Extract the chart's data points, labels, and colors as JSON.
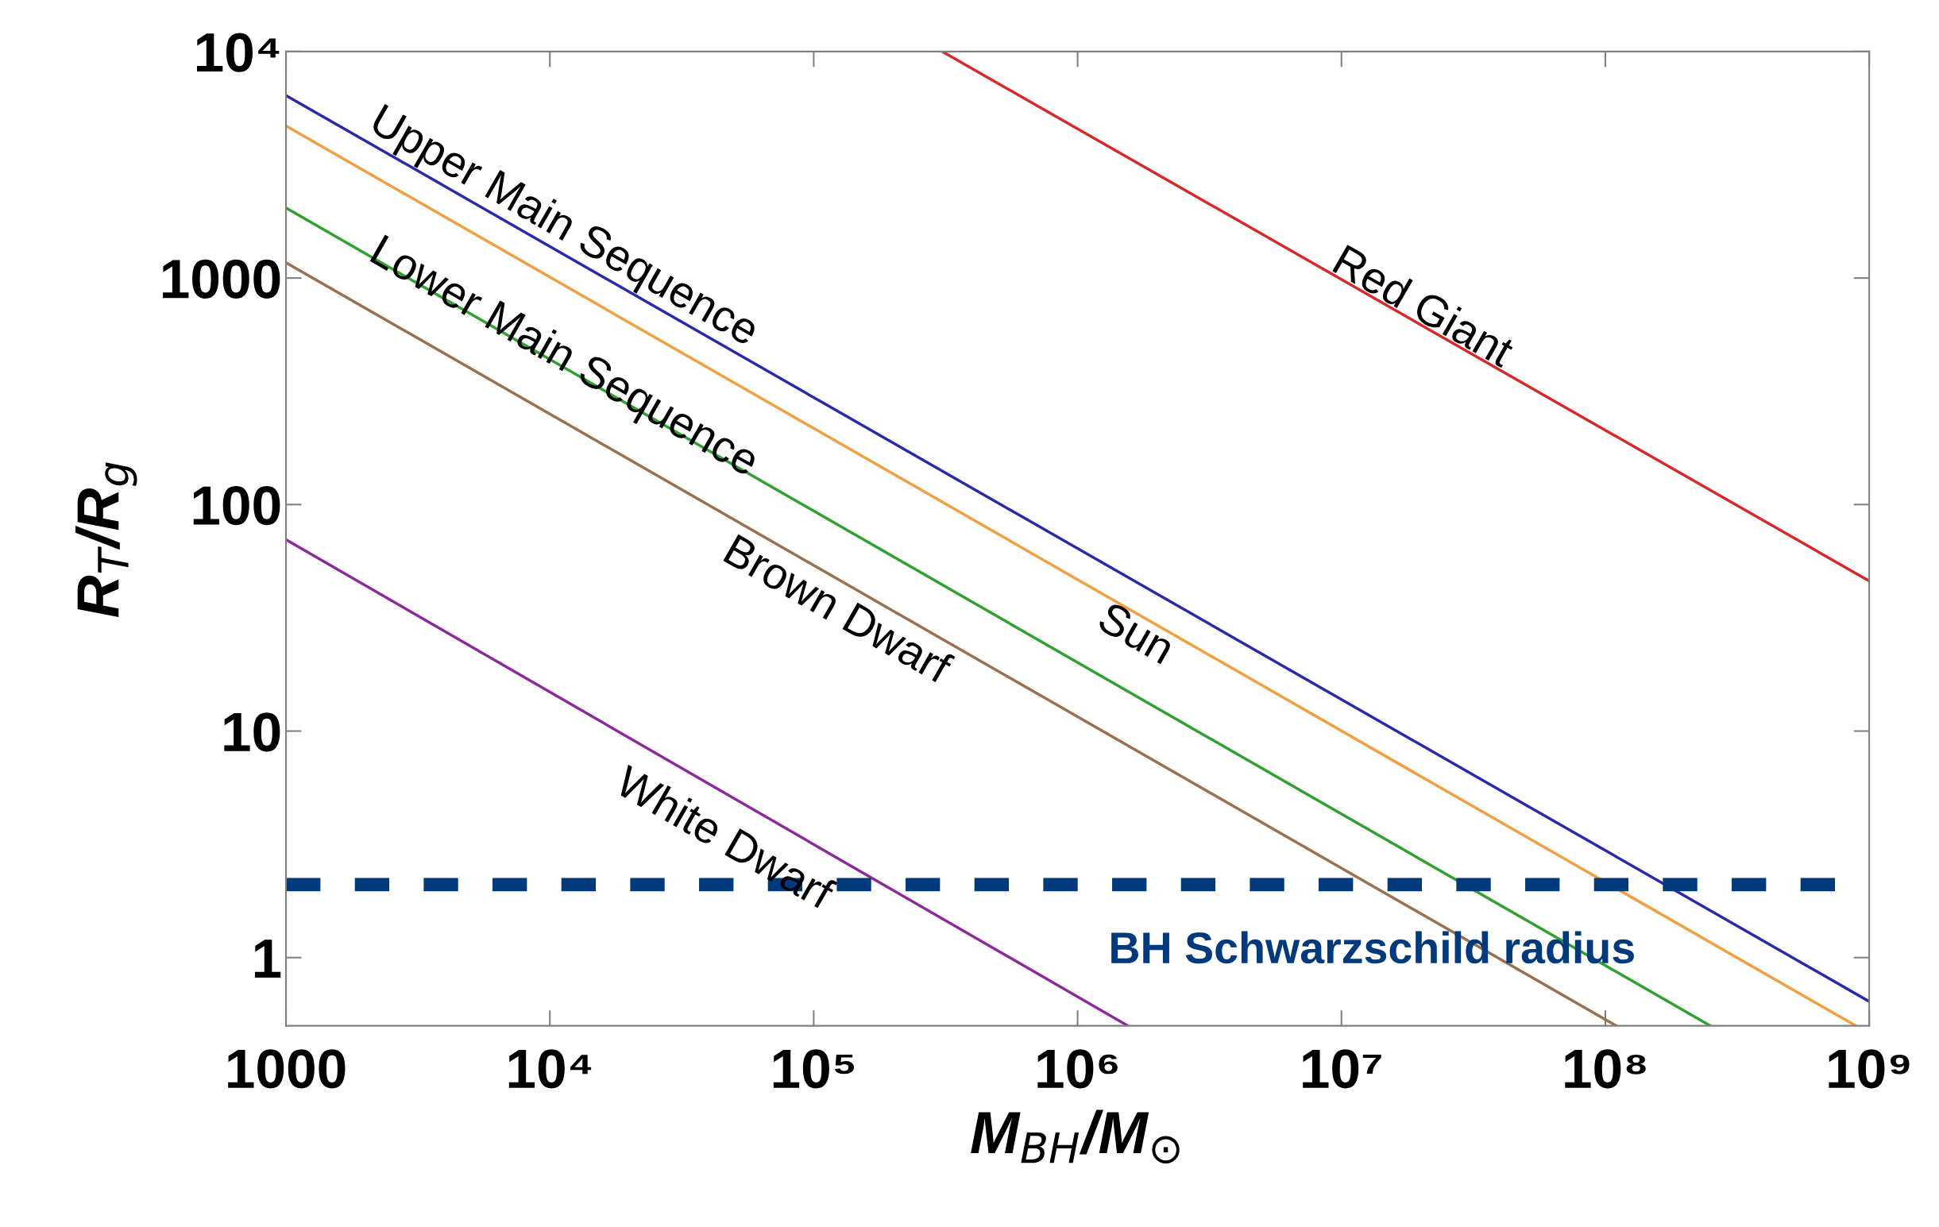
{
  "chart_data": {
    "type": "line",
    "xlabel": "M$_{BH}$/M$_{⊙}$",
    "ylabel": "R$_{T}$/R$_{g}$",
    "log": "xy",
    "grid": false,
    "legend": false,
    "marker": "none",
    "line_style": "solid",
    "xlim": [
      1000,
      1000000000
    ],
    "ylim": [
      0.5,
      10000
    ],
    "xticks": [
      1000,
      {
        "value": 10000,
        "label": "10⁴"
      },
      {
        "value": 100000,
        "label": "10⁵"
      },
      {
        "value": 1000000,
        "label": "10⁶"
      },
      {
        "value": 10000000,
        "label": "10⁷"
      },
      {
        "value": 100000000,
        "label": "10⁸"
      },
      {
        "value": 1000000000,
        "label": "10⁹"
      }
    ],
    "yticks": [
      1,
      10,
      100,
      1000,
      {
        "value": 10000,
        "label": "10⁴"
      }
    ],
    "series": [
      {
        "color": "#2a2aa8",
        "x": [
          1000,
          1000000000
        ],
        "values": [
          6400,
          0.64
        ]
      },
      {
        "color": "#f0a040",
        "x": [
          1000,
          890000000
        ],
        "values": [
          4700,
          0.5
        ]
      },
      {
        "color": "#30a030",
        "x": [
          1000,
          250000000
        ],
        "values": [
          2040,
          0.5
        ]
      },
      {
        "color": "#9a7050",
        "x": [
          1000,
          110000000
        ],
        "values": [
          1170,
          0.5
        ]
      },
      {
        "color": "#8c2a9c",
        "x": [
          1000,
          1550000
        ],
        "values": [
          70,
          0.5
        ]
      },
      {
        "color": "#d42a2a",
        "x": [
          307000,
          1000000000
        ],
        "values": [
          10000,
          46
        ]
      }
    ],
    "ref_lines": [
      {
        "axis": "y",
        "value": 2.1,
        "label": "BH Schwarzschild radius",
        "color": "#003a7d",
        "line_style": "dashed"
      }
    ],
    "annotations": [
      "Upper Main Sequence",
      "Lower Main Sequence",
      "Brown Dwarf",
      "Sun",
      "Red Giant",
      "White Dwarf"
    ]
  }
}
